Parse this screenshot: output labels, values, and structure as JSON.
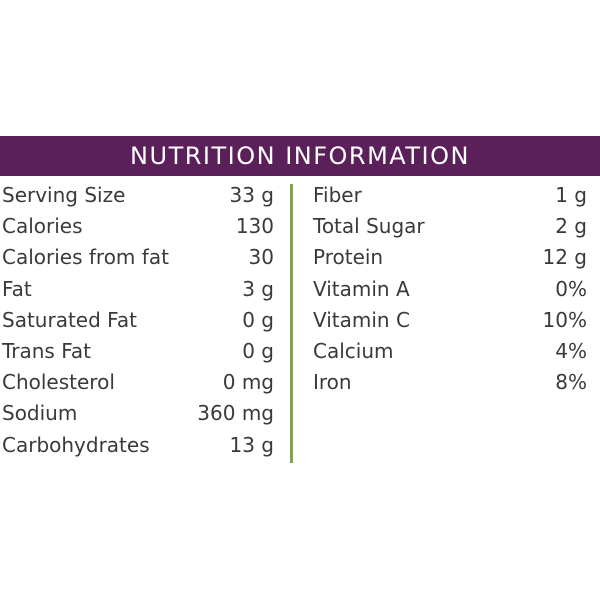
{
  "header": {
    "title": "NUTRITION INFORMATION",
    "background_color": "#5b1f5a",
    "divider_color": "#7fa44a"
  },
  "left_column": [
    {
      "label": "Serving Size",
      "value": "33 g"
    },
    {
      "label": "Calories",
      "value": "130"
    },
    {
      "label": "Calories from fat",
      "value": "30"
    },
    {
      "label": "Fat",
      "value": "3 g"
    },
    {
      "label": "Saturated Fat",
      "value": "0 g"
    },
    {
      "label": "Trans Fat",
      "value": "0 g"
    },
    {
      "label": "Cholesterol",
      "value": "0 mg"
    },
    {
      "label": "Sodium",
      "value": "360 mg"
    },
    {
      "label": "Carbohydrates",
      "value": "13 g"
    }
  ],
  "right_column": [
    {
      "label": "Fiber",
      "value": "1 g"
    },
    {
      "label": "Total Sugar",
      "value": "2 g"
    },
    {
      "label": "Protein",
      "value": "12 g"
    },
    {
      "label": "Vitamin A",
      "value": "0%"
    },
    {
      "label": "Vitamin C",
      "value": "10%"
    },
    {
      "label": "Calcium",
      "value": "4%"
    },
    {
      "label": "Iron",
      "value": "8%"
    }
  ]
}
